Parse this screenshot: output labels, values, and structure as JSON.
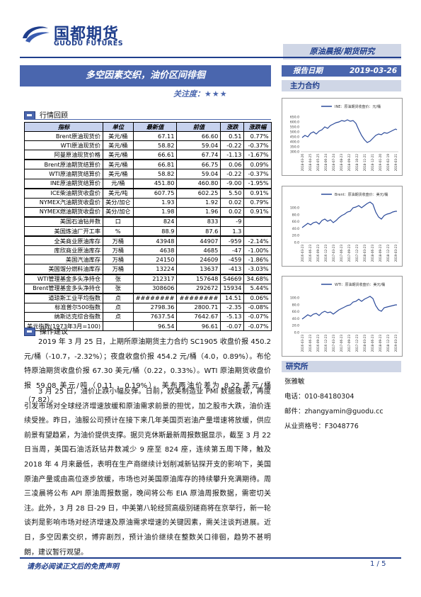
{
  "header": {
    "brand_cn": "国都期货",
    "brand_en": "GUODU FUTURES",
    "report_type": "原油晨报/期货研究",
    "title": "多空因素交织，油价区间徘徊",
    "date_label": "报告日期",
    "date_value": "2019-03-26",
    "attention_label": "关注度：",
    "attention_stars": "★★★",
    "main_contract_label": "主力合约"
  },
  "market_review": {
    "heading": "行情回顾",
    "columns": [
      "指标",
      "单位",
      "最新值",
      "前值",
      "涨跌",
      "涨跌幅"
    ],
    "groups": [
      [
        [
          "Brent原油现货价",
          "美元/桶",
          "67.11",
          "66.60",
          "0.51",
          "0.77%"
        ],
        [
          "WTI原油现货价",
          "美元/桶",
          "58.82",
          "59.04",
          "-0.22",
          "-0.37%"
        ],
        [
          "阿曼原油现货价格",
          "美元/桶",
          "66.61",
          "67.74",
          "-1.13",
          "-1.67%"
        ]
      ],
      [
        [
          "Brent原油期货结算价",
          "美元/桶",
          "66.81",
          "66.75",
          "0.06",
          "0.09%"
        ],
        [
          "WTI原油期货结算价",
          "美元/桶",
          "58.82",
          "59.04",
          "-0.22",
          "-0.37%"
        ],
        [
          "INE原油期货结算价",
          "元/桶",
          "451.80",
          "460.80",
          "-9.00",
          "-1.95%"
        ]
      ],
      [
        [
          "ICE柴油期货收盘价",
          "美元/吨",
          "607.75",
          "602.25",
          "5.50",
          "0.91%"
        ],
        [
          "NYMEX汽油期货收盘价",
          "美分/加仑",
          "1.93",
          "1.92",
          "0.02",
          "0.79%"
        ],
        [
          "NYMEX燃油期货收盘价",
          "美分/加仑",
          "1.98",
          "1.96",
          "0.02",
          "0.91%"
        ]
      ],
      [
        [
          "美国石油钻井数",
          "口",
          "824",
          "833",
          "-9",
          ""
        ],
        [
          "美国炼油厂开工率",
          "%",
          "88.9",
          "87.6",
          "1.3",
          ""
        ]
      ],
      [
        [
          "全美商业原油库存",
          "万桶",
          "43948",
          "44907",
          "-959",
          "-2.14%"
        ],
        [
          "库欣商业原油库存",
          "万桶",
          "4638",
          "4685",
          "-47",
          "-1.00%"
        ],
        [
          "美国汽油库存",
          "万桶",
          "24150",
          "24609",
          "-459",
          "-1.86%"
        ],
        [
          "美国馏分燃料油库存",
          "万桶",
          "13224",
          "13637",
          "-413",
          "-3.03%"
        ]
      ],
      [
        [
          "WTI管理基金多头净持仓",
          "张",
          "212317",
          "157648",
          "54669",
          "34.68%"
        ],
        [
          "Brent管理基金多头净持仓",
          "张",
          "308606",
          "292672",
          "15934",
          "5.44%"
        ]
      ],
      [
        [
          "道琼斯工业平均指数",
          "点",
          "########",
          "########",
          "14.51",
          "0.06%"
        ],
        [
          "标准普尔500指数",
          "点",
          "2798.36",
          "2800.71",
          "-2.35",
          "-0.08%"
        ],
        [
          "纳斯达克综合指数",
          "点",
          "7637.54",
          "7642.67",
          "-5.13",
          "-0.07%"
        ],
        [
          "美元指数(1973年3月=100)",
          "",
          "96.54",
          "96.61",
          "-0.07",
          "-0.07%"
        ]
      ]
    ]
  },
  "advice": {
    "heading": "操作建议",
    "paragraphs": [
      "2019 年 3 月 25 日，上期所原油期货主力合约 SC1905 收盘价报 450.2 元/桶（-10.7，-2.32%）；夜盘收盘价报 454.2 元/桶（4.0，0.89%）。布伦特原油期货收盘价报 67.30 美元/桶（0.22，0.33%）。WTI 原油期货收盘价报 59.08 美元/吨（0.11 ，0.19%）。美布两油价差为 8.22 美元/桶（7.82）。",
      "3 月 25 日，油价止跌小幅反弹。日前，欧美制造业 PMI 数据疲软，再度引发市场对全球经济增速放缓和原油需求前景的担忧，加之股市大跌，油价连续受挫。昨日，油服公司预计在接下来几年美国页岩油产量增速将放缓，供应前景有望趋紧，为油价提供支撑。据贝克休斯最新周报数据显示，截至 3 月 22 日当周，美国石油活跃钻井数减少 9 座至 824 座，连续第五周下降，触及 2018 年 4 月来最低，表明在生产商继续计划削减新钻探开支的影响下，美国原油产量或由高位逐步放缓，市场也对美国原油库存的持续攀升充满期待。周三凌晨将公布 API 原油周报数据，晚间将公布 EIA 原油周报数据，需密切关注。此外，3 月 28 日-29 日，中美第八轮经贸高级别磋商将在京举行，新一轮谈判是影响市场对经济增速及原油需求增速的关键因素，需关注谈判进展。近日，多空因素交织，博弈剧烈，预计油价继续在整数关口徘徊，趋势不甚明朗，建议暂行观望。"
    ]
  },
  "sidebar_charts": [
    {
      "legend": "INE：原油期货收盘价：元/桶",
      "y_ticks": [
        "650.0",
        "600.0",
        "550.0",
        "500.0",
        "450.0",
        "400.0",
        "350.0",
        "300.0"
      ],
      "x_ticks": [
        "2018-03-26",
        "2018-04-25",
        "2018-05-25",
        "2018-06-24",
        "2018-07-24",
        "2018-08-23",
        "2018-09-22",
        "2018-10-22",
        "2018-11-21",
        "2018-12-21",
        "2019-01-20",
        "2019-02-19",
        "2019-03-21"
      ]
    },
    {
      "legend": "Brent：原油期货收盘价：美元/桶",
      "y_ticks": [
        "100.0",
        "80.0",
        "60.0",
        "40.0",
        "20.0",
        "0.0"
      ],
      "x_ticks": [
        "2016-03-23",
        "2016-06-23",
        "2016-09-23",
        "2016-12-23",
        "2017-03-23",
        "2017-06-23",
        "2017-09-23",
        "2017-12-23",
        "2018-03-23",
        "2018-06-23",
        "2018-09-23",
        "2018-12-23",
        "2019-03-23"
      ]
    },
    {
      "legend": "WTI：原油期货收盘价：美元/桶",
      "y_ticks": [
        "100.0",
        "80.0",
        "60.0",
        "40.0",
        "20.0",
        "0.0"
      ],
      "x_ticks": [
        "2016-03-23",
        "2016-06-23",
        "2016-09-23",
        "2016-12-23",
        "2017-03-23",
        "2017-06-23",
        "2017-09-23",
        "2017-12-23",
        "2018-03-23",
        "2018-06-23",
        "2018-09-23",
        "2018-12-23",
        "2019-03-23"
      ]
    }
  ],
  "research": {
    "heading": "研究所",
    "name": "张雅敏",
    "phone": "电话：010-84180304",
    "email": "邮件：zhangyamin@guodu.cc",
    "license": "从业资格号：F3048776"
  },
  "footer": {
    "disclaimer": "请务必阅读正文后的免责声明",
    "page": "1 / 5"
  },
  "colors": {
    "brand_blue": "#1f3e8c",
    "bar_blue": "#4a66ae",
    "light_blue": "#cfd6e6",
    "table_header": "#c7d2ee"
  }
}
